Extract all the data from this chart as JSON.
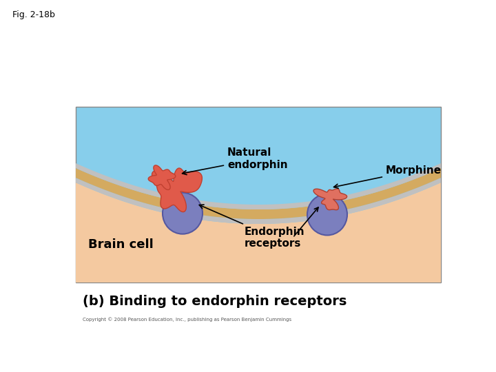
{
  "fig_label": "Fig. 2-18b",
  "title_sub": "(b) Binding to endorphin receptors",
  "copyright": "Copyright © 2008 Pearson Education, Inc., publishing as Pearson Benjamin Cummings",
  "label_natural": "Natural\nendorphin",
  "label_morphine": "Morphine",
  "label_brain_cell": "Brain cell",
  "label_receptors": "Endorphin\nreceptors",
  "bg_color": "#ffffff",
  "box_bg_light_blue": "#87CEEB",
  "cell_fill_color": "#F4C9A0",
  "membrane_gold": "#D4AA60",
  "membrane_gray": "#C0C0C0",
  "receptor_color": "#7B7FBE",
  "endorphin_color": "#E05A4A",
  "morphine_color": "#E07060",
  "text_color": "#000000",
  "fig_label_fontsize": 9,
  "subtitle_fontsize": 14,
  "label_fontsize": 11,
  "brain_cell_fontsize": 13
}
